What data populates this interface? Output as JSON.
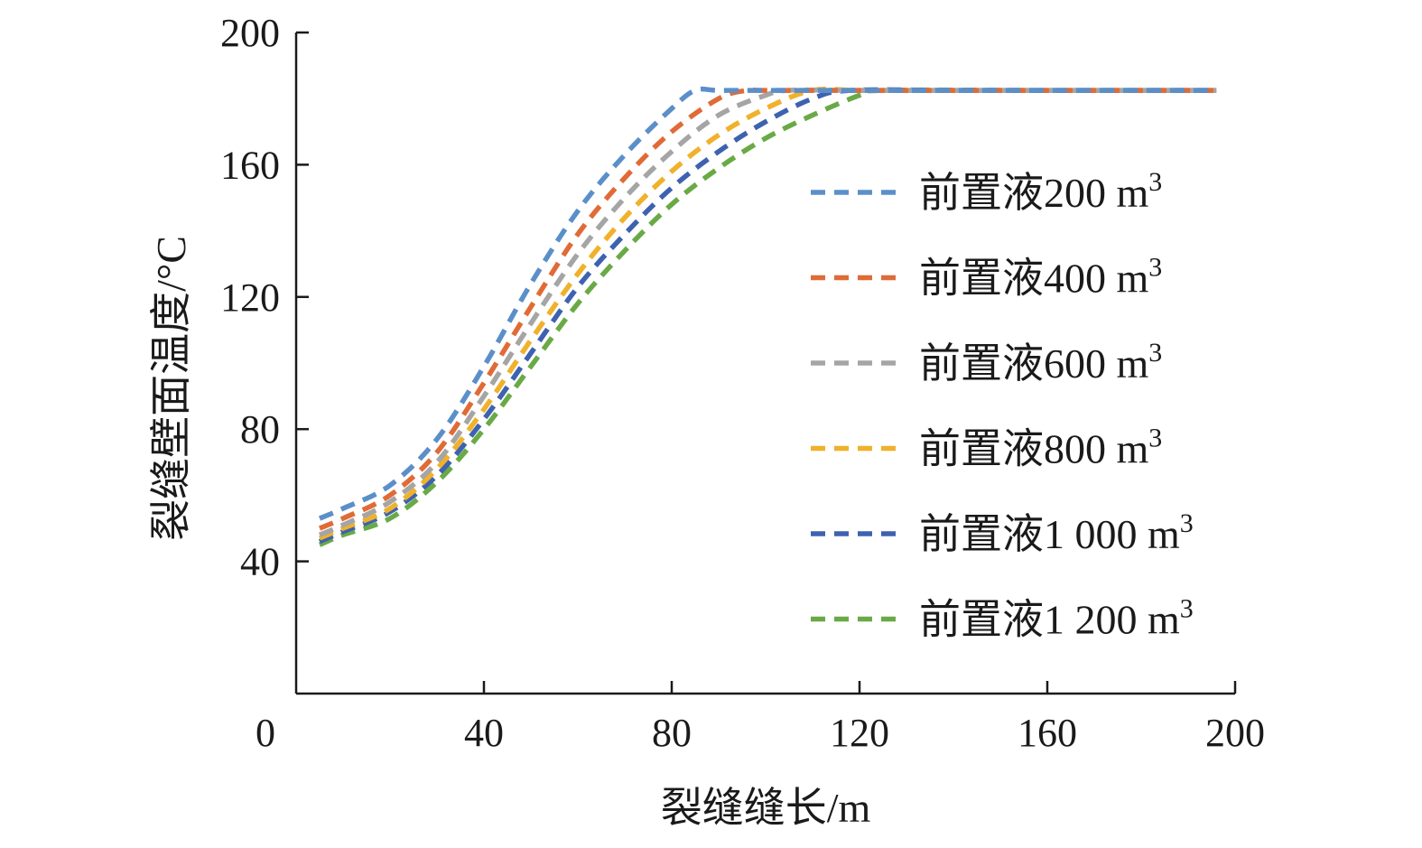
{
  "chart_data": {
    "type": "line",
    "xlabel": "裂缝缝长/m",
    "ylabel": "裂缝壁面温度/°C",
    "xlim": [
      0,
      200
    ],
    "ylim": [
      0,
      200
    ],
    "x_ticks": [
      "0",
      "40",
      "80",
      "120",
      "160",
      "200"
    ],
    "y_ticks": [
      "40",
      "80",
      "120",
      "160",
      "200"
    ],
    "grid": false,
    "legend_position": "right",
    "series": [
      {
        "name": "前置液200 m³",
        "label_main": "前置液200 m",
        "label_sup": "3",
        "color": "#5b8fc9",
        "x": [
          0,
          10,
          20,
          30,
          40,
          50,
          60,
          70,
          80,
          85,
          90,
          100,
          120,
          140,
          160,
          180,
          200
        ],
        "y": [
          53,
          56,
          63,
          77,
          99,
          124,
          146,
          163,
          177,
          182.5,
          182.5,
          182.5,
          182.5,
          182.5,
          182.5,
          182.5,
          182.5
        ]
      },
      {
        "name": "前置液400 m³",
        "label_main": "前置液400 m",
        "label_sup": "3",
        "color": "#e06b37",
        "x": [
          0,
          10,
          20,
          30,
          40,
          50,
          60,
          70,
          80,
          90,
          96,
          100,
          120,
          140,
          160,
          180,
          200
        ],
        "y": [
          50,
          53,
          60,
          73,
          94,
          117,
          139,
          156,
          170,
          180,
          182.5,
          182.5,
          182.5,
          182.5,
          182.5,
          182.5,
          182.5
        ]
      },
      {
        "name": "前置液600 m³",
        "label_main": "前置液600 m",
        "label_sup": "3",
        "color": "#a5a5a5",
        "x": [
          0,
          10,
          20,
          30,
          40,
          50,
          60,
          70,
          80,
          90,
          100,
          105,
          120,
          140,
          160,
          180,
          200
        ],
        "y": [
          48,
          51,
          58,
          70,
          90,
          112,
          133,
          150,
          164,
          175,
          181,
          182.5,
          182.5,
          182.5,
          182.5,
          182.5,
          182.5
        ]
      },
      {
        "name": "前置液800 m³",
        "label_main": "前置液800 m",
        "label_sup": "3",
        "color": "#f0b12b",
        "x": [
          0,
          10,
          20,
          30,
          40,
          50,
          60,
          70,
          80,
          90,
          100,
          110,
          120,
          140,
          160,
          180,
          200
        ],
        "y": [
          47,
          50,
          56,
          68,
          86,
          107,
          127,
          144,
          158,
          169,
          177,
          182.5,
          182.5,
          182.5,
          182.5,
          182.5,
          182.5
        ]
      },
      {
        "name": "前置液1 000 m³",
        "label_main": "前置液1 000 m",
        "label_sup": "3",
        "color": "#3d62b0",
        "x": [
          0,
          10,
          20,
          30,
          40,
          50,
          60,
          70,
          80,
          90,
          100,
          110,
          118,
          140,
          160,
          180,
          200
        ],
        "y": [
          46,
          49,
          55,
          66,
          83,
          103,
          123,
          139,
          153,
          164,
          173,
          180,
          182.5,
          182.5,
          182.5,
          182.5,
          182.5
        ]
      },
      {
        "name": "前置液1 200 m³",
        "label_main": "前置液1 200 m",
        "label_sup": "3",
        "color": "#6aaa46",
        "x": [
          0,
          10,
          20,
          30,
          40,
          50,
          60,
          70,
          80,
          90,
          100,
          110,
          120,
          125,
          160,
          180,
          200
        ],
        "y": [
          45,
          48,
          53,
          64,
          80,
          99,
          118,
          134,
          148,
          159,
          168,
          175,
          181,
          182.5,
          182.5,
          182.5,
          182.5
        ]
      }
    ]
  }
}
